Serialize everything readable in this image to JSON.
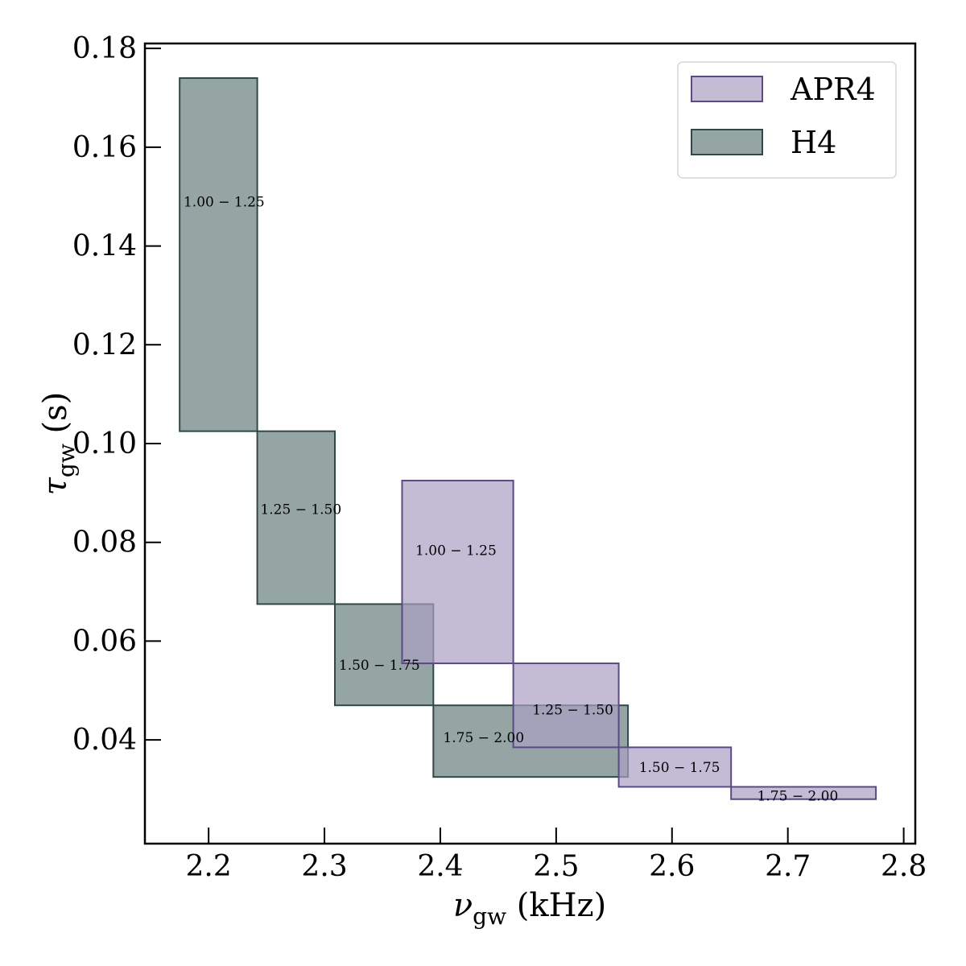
{
  "chart_data": {
    "type": "bar",
    "xlabel": {
      "symbol": "ν",
      "sub": "gw",
      "unit": " (kHz)"
    },
    "ylabel": {
      "symbol": "τ",
      "sub": "gw",
      "unit": " (s)"
    },
    "xlim": [
      2.145,
      2.81
    ],
    "ylim": [
      0.019,
      0.181
    ],
    "xticks": [
      2.2,
      2.3,
      2.4,
      2.5,
      2.6,
      2.7,
      2.8
    ],
    "yticks": [
      0.04,
      0.06,
      0.08,
      0.1,
      0.12,
      0.14,
      0.16,
      0.18
    ],
    "xtick_labels": [
      "2.2",
      "2.3",
      "2.4",
      "2.5",
      "2.6",
      "2.7",
      "2.8"
    ],
    "ytick_labels": [
      "0.04",
      "0.06",
      "0.08",
      "0.10",
      "0.12",
      "0.14",
      "0.16",
      "0.18"
    ],
    "legend_position": "top-right",
    "series": [
      {
        "name": "APR4",
        "fill": "#ab9fc3",
        "stroke": "#5a4a8a",
        "rects": [
          {
            "label": "1.00 − 1.25",
            "x0": 2.367,
            "x1": 2.463,
            "y0": 0.0555,
            "y1": 0.0925
          },
          {
            "label": "1.25 − 1.50",
            "x0": 2.463,
            "x1": 2.554,
            "y0": 0.0385,
            "y1": 0.0555
          },
          {
            "label": "1.50 − 1.75",
            "x0": 2.554,
            "x1": 2.651,
            "y0": 0.0305,
            "y1": 0.0385
          },
          {
            "label": "1.75 − 2.00",
            "x0": 2.651,
            "x1": 2.776,
            "y0": 0.028,
            "y1": 0.0305
          }
        ]
      },
      {
        "name": "H4",
        "fill": "#687f7e",
        "stroke": "#2e4a46",
        "rects": [
          {
            "label": "1.00 − 1.25",
            "x0": 2.175,
            "x1": 2.242,
            "y0": 0.1025,
            "y1": 0.174
          },
          {
            "label": "1.25 − 1.50",
            "x0": 2.242,
            "x1": 2.309,
            "y0": 0.0675,
            "y1": 0.1025
          },
          {
            "label": "1.50 − 1.75",
            "x0": 2.309,
            "x1": 2.394,
            "y0": 0.047,
            "y1": 0.0675
          },
          {
            "label": "1.75 − 2.00",
            "x0": 2.394,
            "x1": 2.562,
            "y0": 0.0325,
            "y1": 0.047
          }
        ]
      }
    ]
  }
}
